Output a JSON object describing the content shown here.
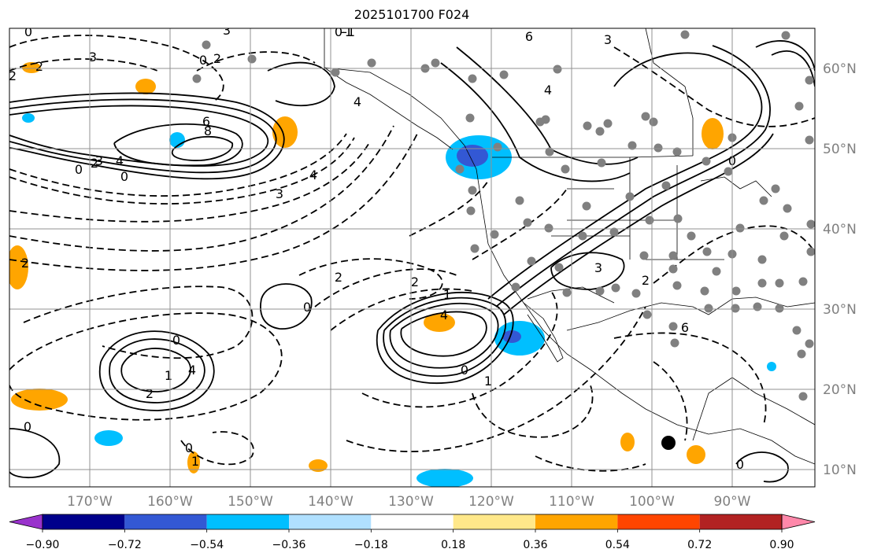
{
  "title": "2025101700 F024",
  "axes": {
    "lon_labels": [
      "170°W",
      "160°W",
      "150°W",
      "140°W",
      "130°W",
      "120°W",
      "110°W",
      "100°W",
      "90°W"
    ],
    "lat_labels": [
      "60°N",
      "50°N",
      "40°N",
      "30°N",
      "20°N",
      "10°N"
    ],
    "tick_color": "#808080"
  },
  "colorbar": {
    "ticks": [
      "−0.90",
      "−0.72",
      "−0.54",
      "−0.36",
      "−0.18",
      "0.18",
      "0.36",
      "0.54",
      "0.72",
      "0.90"
    ],
    "colors": [
      "#9932cc",
      "#00008b",
      "#3358d4",
      "#00bfff",
      "#b0e0ff",
      "#ffffff",
      "#ffe88a",
      "#ffa500",
      "#ff4500",
      "#b22222",
      "#ff88aa"
    ]
  },
  "contour_labels": [
    {
      "text": "0"
    },
    {
      "text": "3"
    },
    {
      "text": "2"
    },
    {
      "text": "-1"
    },
    {
      "text": "3"
    },
    {
      "text": "2"
    },
    {
      "text": "0"
    },
    {
      "text": "6"
    },
    {
      "text": "8"
    },
    {
      "text": "4"
    },
    {
      "text": "4"
    },
    {
      "text": "3"
    },
    {
      "text": "2"
    },
    {
      "text": "0"
    },
    {
      "text": "1"
    },
    {
      "text": "4"
    },
    {
      "text": "0"
    },
    {
      "text": "2"
    },
    {
      "text": "2"
    },
    {
      "text": "0"
    },
    {
      "text": "1"
    },
    {
      "text": "4"
    },
    {
      "text": "0"
    },
    {
      "text": "1"
    },
    {
      "text": "2"
    },
    {
      "text": "4"
    },
    {
      "text": "3"
    },
    {
      "text": "0"
    },
    {
      "text": "6"
    },
    {
      "text": "4"
    },
    {
      "text": "3"
    },
    {
      "text": "2"
    },
    {
      "text": "6"
    },
    {
      "text": "0"
    },
    {
      "text": "0-1"
    },
    {
      "text": "3"
    },
    {
      "text": "2"
    },
    {
      "text": "0"
    },
    {
      "text": "1"
    },
    {
      "text": "0"
    },
    {
      "text": "0"
    },
    {
      "text": "2"
    }
  ],
  "station_marker": {
    "name": "large-black-dot"
  }
}
